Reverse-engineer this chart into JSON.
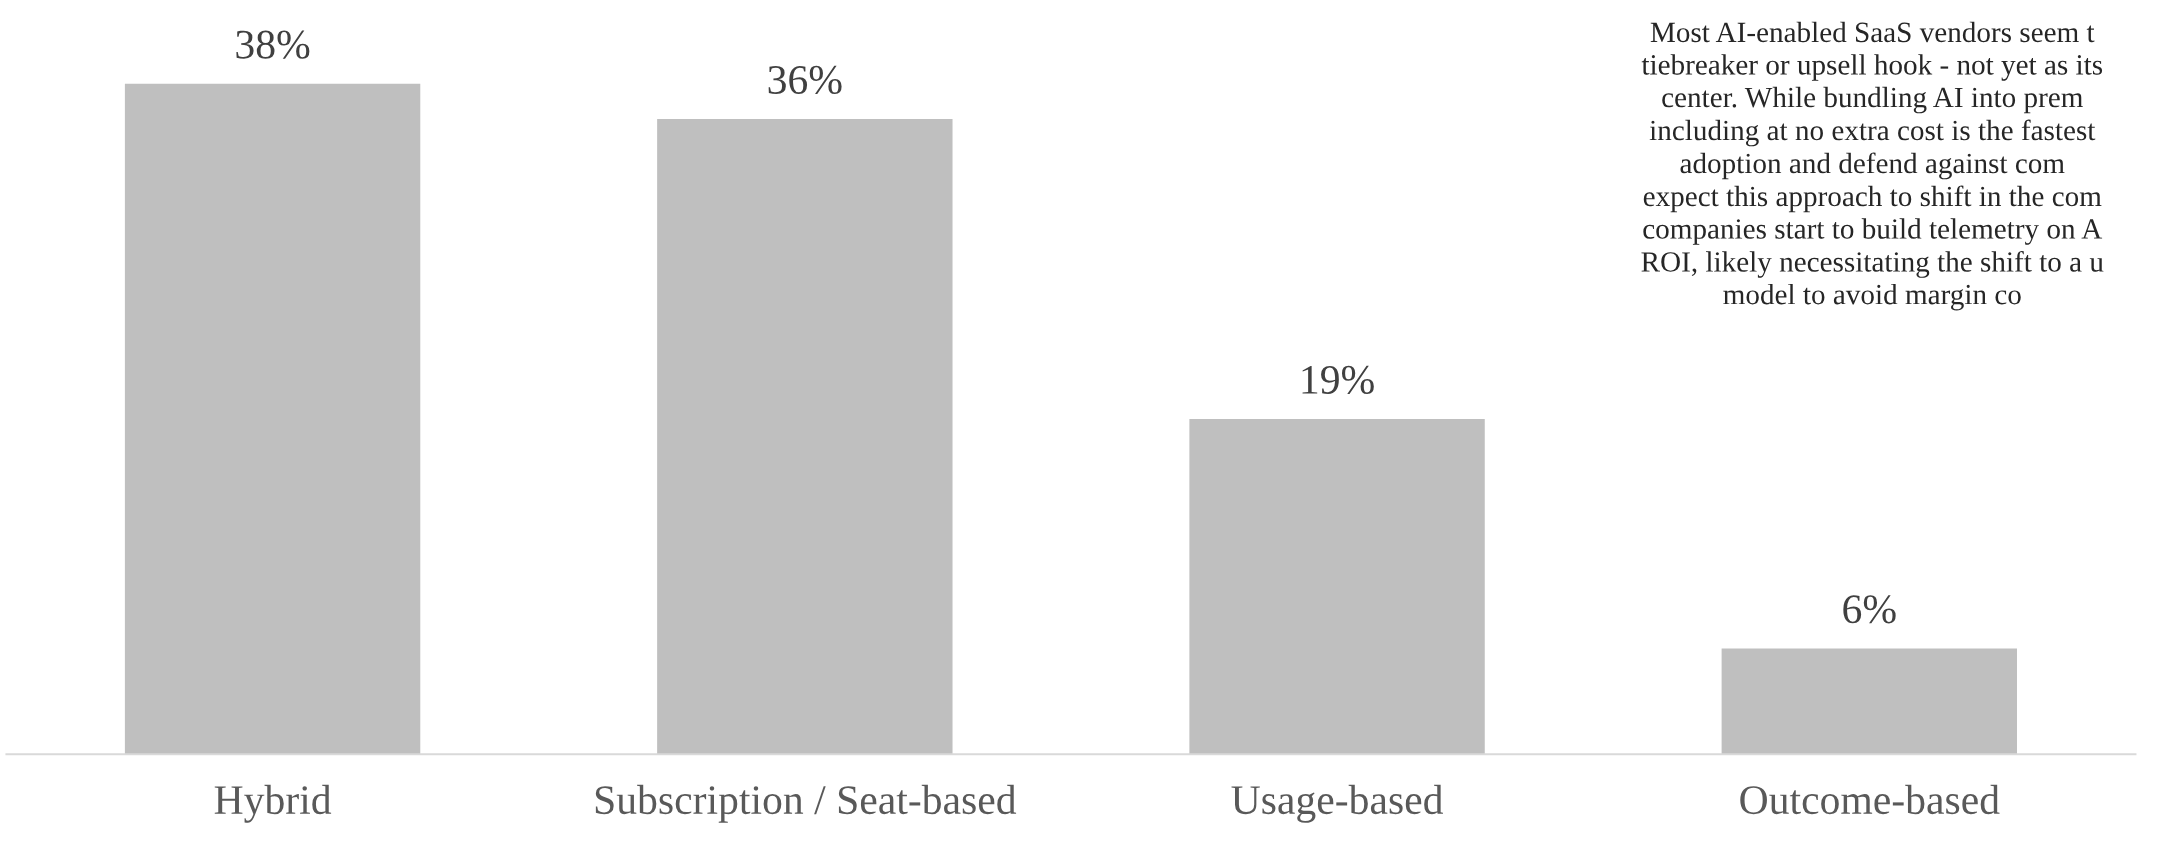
{
  "chart_data": {
    "type": "bar",
    "categories": [
      "Hybrid",
      "Subscription / Seat-based",
      "Usage-based",
      "Outcome-based"
    ],
    "values": [
      38,
      36,
      19,
      6
    ],
    "value_labels": [
      "38%",
      "36%",
      "19%",
      "6%"
    ],
    "color": "#bfbfbf",
    "grid": false,
    "annotations": [
      "Most AI-enabled SaaS vendors seem t\ntiebreaker or upsell hook - not yet as its\ncenter. While bundling AI into prem\nincluding at no extra cost is the fastest\nadoption and defend against com\nexpect this approach to shift in the com\ncompanies start to build telemetry on A\nROI, likely necessitating the shift to a u\nmodel to avoid margin co"
    ]
  }
}
